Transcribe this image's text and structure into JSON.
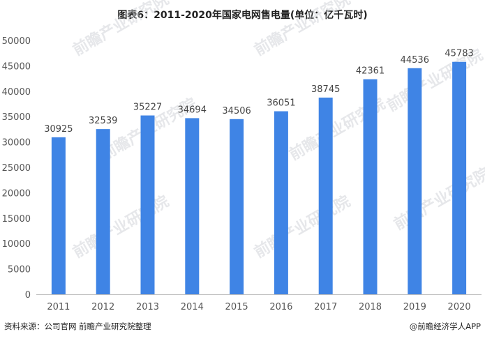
{
  "chart_data": {
    "type": "bar",
    "title": "图表6：2011-2020年国家电网售电量(单位：亿千瓦时)",
    "categories": [
      "2011",
      "2012",
      "2013",
      "2014",
      "2015",
      "2016",
      "2017",
      "2018",
      "2019",
      "2020"
    ],
    "values": [
      30925,
      32539,
      35227,
      34694,
      34506,
      36051,
      38745,
      42361,
      44536,
      45783
    ],
    "ylim": [
      0,
      50000
    ],
    "yticks": [
      0,
      5000,
      10000,
      15000,
      20000,
      25000,
      30000,
      35000,
      40000,
      45000,
      50000
    ],
    "xlabel": "",
    "ylabel": "",
    "bar_color": "#3f84e5",
    "grid": false
  },
  "footer": {
    "source": "资料来源：公司官网 前瞻产业研究院整理",
    "credit": "@前瞻经济学人APP"
  },
  "watermark": {
    "text": "前瞻产业研究院"
  }
}
